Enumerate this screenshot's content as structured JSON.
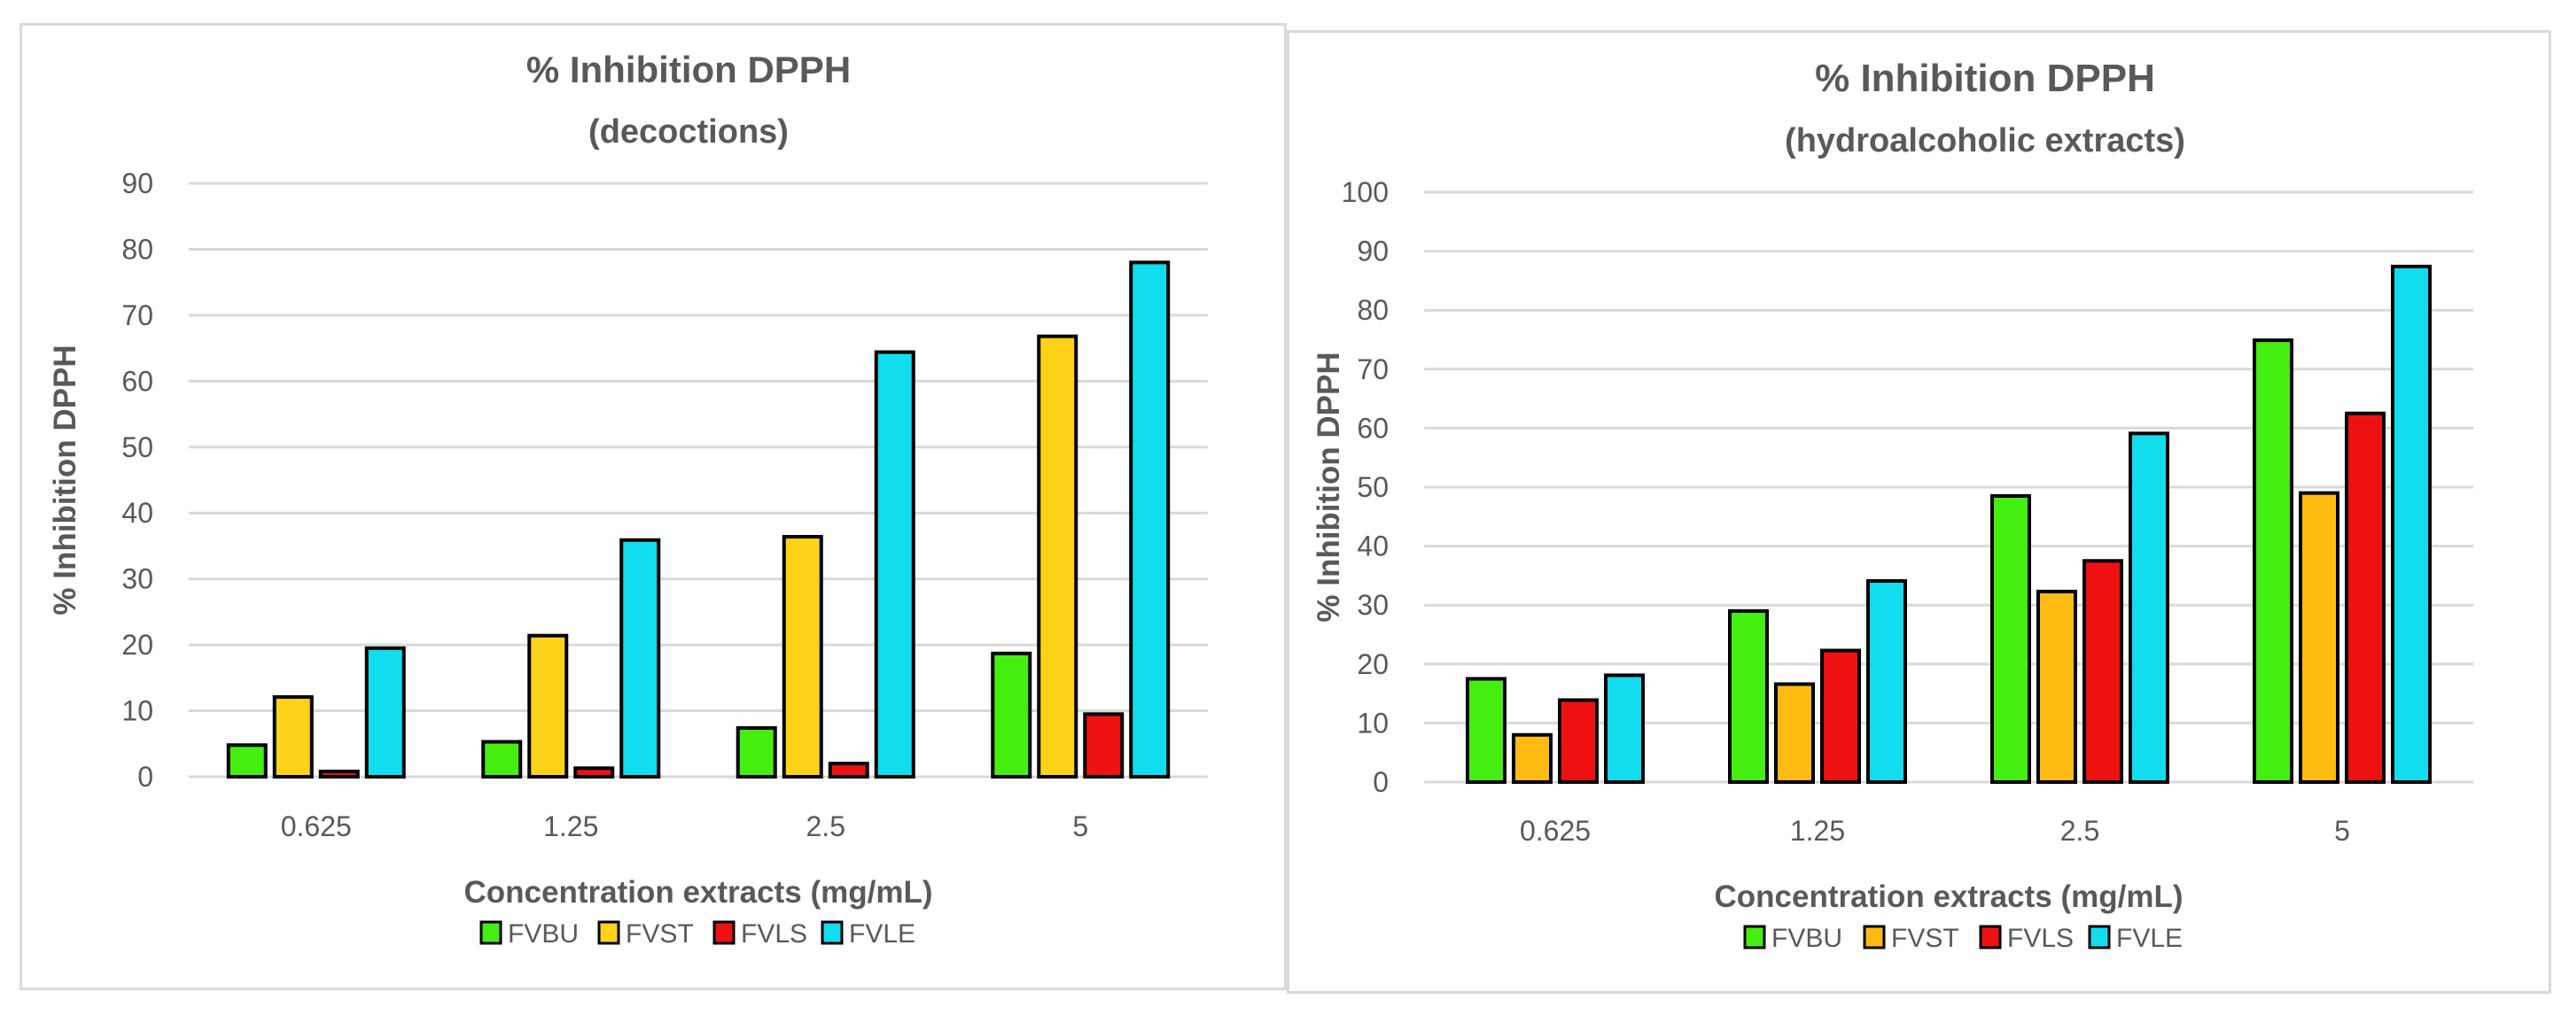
{
  "chart_data": [
    {
      "type": "bar",
      "title": "% Inhibition DPPH",
      "subtitle": "(decoctions)",
      "xlabel": "Concentration extracts (mg/mL)",
      "ylabel": "% Inhibition DPPH",
      "ylim": [
        0,
        90
      ],
      "yticks": [
        "0",
        "10",
        "20",
        "30",
        "40",
        "50",
        "60",
        "70",
        "80",
        "90"
      ],
      "grid": true,
      "legend_position": "bottom",
      "categories": [
        "0.625",
        "1.25",
        "2.5",
        "5"
      ],
      "series": [
        {
          "name": "FVBU",
          "color": "#44ee11",
          "values": [
            4.8,
            5.3,
            7.4,
            18.7
          ]
        },
        {
          "name": "FVST",
          "color": "#ffd21a",
          "values": [
            12.1,
            21.4,
            36.4,
            66.8
          ]
        },
        {
          "name": "FVLS",
          "color": "#ee1111",
          "values": [
            0.8,
            1.3,
            2.0,
            9.5
          ]
        },
        {
          "name": "FVLE",
          "color": "#11ddee",
          "values": [
            19.5,
            35.9,
            64.4,
            78.0
          ]
        }
      ]
    },
    {
      "type": "bar",
      "title": "% Inhibition DPPH",
      "subtitle": "(hydroalcoholic extracts)",
      "xlabel": "Concentration extracts (mg/mL)",
      "ylabel": "% Inhibition DPPH",
      "ylim": [
        0,
        100
      ],
      "yticks": [
        "0",
        "10",
        "20",
        "30",
        "40",
        "50",
        "60",
        "70",
        "80",
        "90",
        "100"
      ],
      "grid": true,
      "legend_position": "bottom",
      "categories": [
        "0.625",
        "1.25",
        "2.5",
        "5"
      ],
      "series": [
        {
          "name": "FVBU",
          "color": "#44ee11",
          "values": [
            17.5,
            29.0,
            48.5,
            74.9
          ]
        },
        {
          "name": "FVST",
          "color": "#ffbb11",
          "values": [
            8.0,
            16.6,
            32.3,
            49.0
          ]
        },
        {
          "name": "FVLS",
          "color": "#ee1111",
          "values": [
            13.9,
            22.3,
            37.5,
            62.5
          ]
        },
        {
          "name": "FVLE",
          "color": "#11ddee",
          "values": [
            18.1,
            34.1,
            59.1,
            87.4
          ]
        }
      ]
    }
  ]
}
